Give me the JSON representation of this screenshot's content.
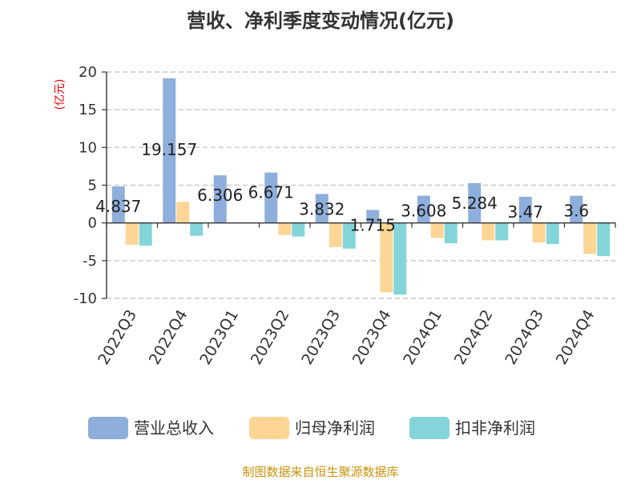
{
  "chart_data": {
    "type": "bar",
    "title": "营收、净利季度变动情况(亿元)",
    "ylabel": "(亿元)",
    "ylim": [
      -10,
      20
    ],
    "yticks": [
      20,
      15,
      10,
      5,
      0,
      -5,
      -10
    ],
    "grid": true,
    "legend_position": "bottom",
    "categories": [
      "2022Q3",
      "2022Q4",
      "2023Q1",
      "2023Q2",
      "2023Q3",
      "2023Q4",
      "2024Q1",
      "2024Q2",
      "2024Q3",
      "2024Q4"
    ],
    "series": [
      {
        "name": "营业总收入",
        "color": "#8eaedb",
        "values": [
          4.837,
          19.157,
          6.306,
          6.671,
          3.832,
          1.715,
          3.608,
          5.284,
          3.47,
          3.6
        ],
        "labels": [
          "4.837",
          "19.157",
          "6.306",
          "6.671",
          "3.832",
          "1.715",
          "3.608",
          "5.284",
          "3.47",
          "3.6"
        ]
      },
      {
        "name": "归母净利润",
        "color": "#fdd696",
        "values": [
          -2.9,
          2.8,
          0.05,
          -1.6,
          -3.2,
          -9.2,
          -2.0,
          -2.3,
          -2.6,
          -4.1
        ]
      },
      {
        "name": "扣非净利润",
        "color": "#84d5d9",
        "values": [
          -3.0,
          -1.7,
          0.05,
          -1.8,
          -3.4,
          -9.5,
          -2.7,
          -2.3,
          -2.8,
          -4.4
        ]
      }
    ],
    "source": "制图数据来自恒生聚源数据库"
  }
}
